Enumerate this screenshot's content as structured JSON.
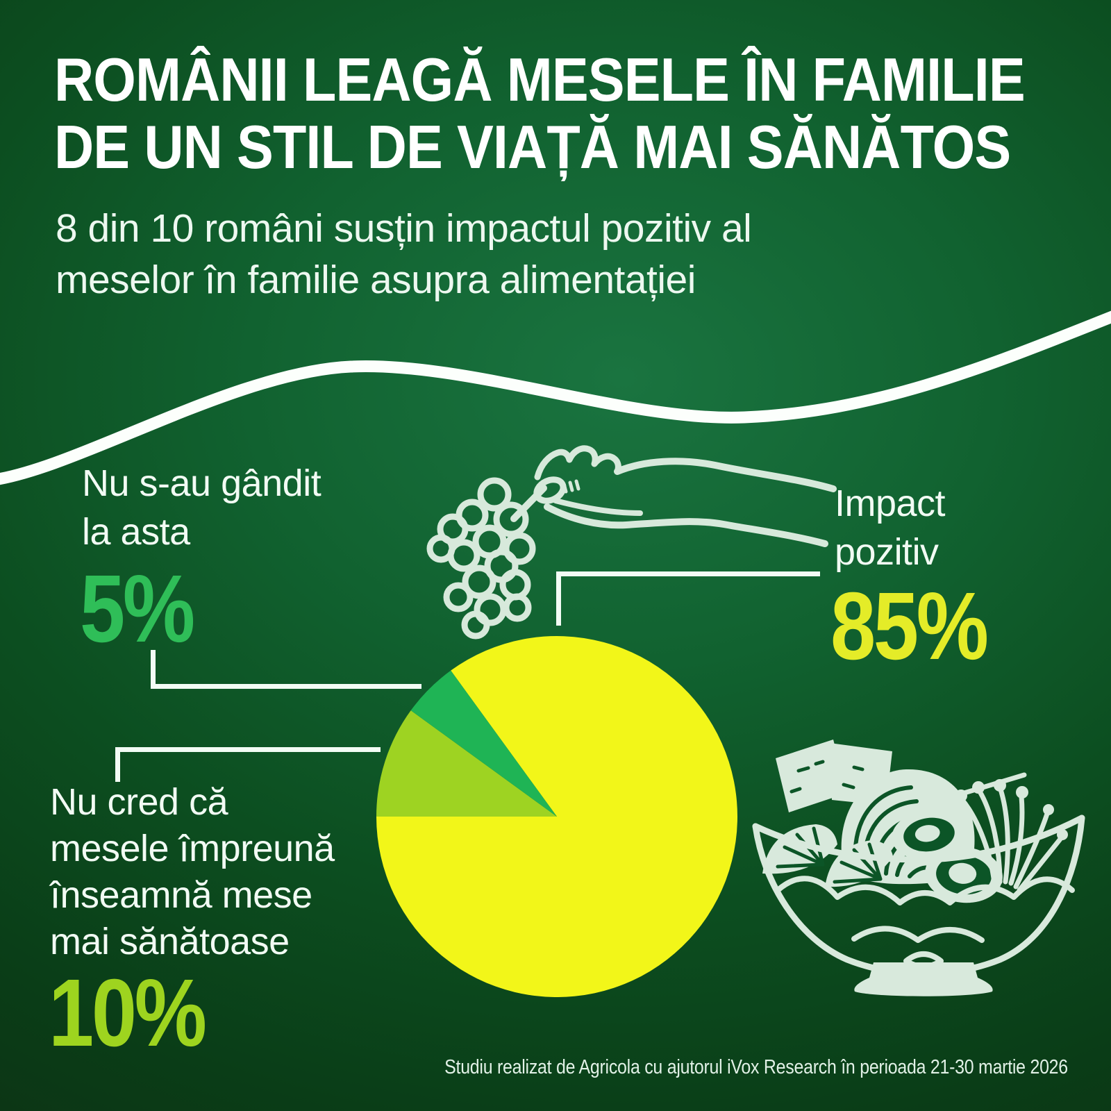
{
  "title": {
    "line1": "ROMÂNII LEAGĂ MESELE ÎN FAMILIE",
    "line2": "DE UN STIL DE VIAȚĂ MAI SĂNĂTOS"
  },
  "subtitle": {
    "line1": "8 din 10 români susțin impactul pozitiv al",
    "line2": "meselor în familie asupra alimentației"
  },
  "chart_data": {
    "type": "pie",
    "start_angle_deg": 126,
    "slices": [
      {
        "label": "Impact pozitiv",
        "value": 85,
        "color": "#f2f619"
      },
      {
        "label": "Nu cred că mesele împreună înseamnă mese mai sănătoase",
        "value": 10,
        "color": "#9ed322"
      },
      {
        "label": "Nu s-au gândit la asta",
        "value": 5,
        "color": "#1fb455"
      }
    ],
    "legend_position": "callouts-around-pie",
    "grid": false
  },
  "callouts": {
    "positive": {
      "line1": "Impact",
      "line2": "pozitiv",
      "pct": "85%"
    },
    "not_thought": {
      "line1": "Nu s-au gândit",
      "line2": "la asta",
      "pct": "5%"
    },
    "dont_believe": {
      "line1": "Nu cred că",
      "line2": "mesele împreună",
      "line3": "înseamnă mese",
      "line4": "mai sănătoase",
      "pct": "10%"
    }
  },
  "footer": {
    "text": "Studiu realizat de Agricola cu ajutorul iVox Research în perioada 21-30 martie 2026"
  },
  "colors": {
    "pct_85": "#e4ec28",
    "pct_10": "#9ed41f",
    "pct_5": "#2fbe58",
    "label_text": "#f2fbf4",
    "title_text": "#ffffff",
    "background_center": "#1a7440",
    "background_edge": "#0d3214",
    "wave": "#fcfffc",
    "leader_line": "#f3fcf5",
    "illustration": "#d8e9dc"
  },
  "icons": {
    "grapes_hand": "hand-picking-grapes-illustration",
    "bowl": "salad-bowl-illustration"
  }
}
